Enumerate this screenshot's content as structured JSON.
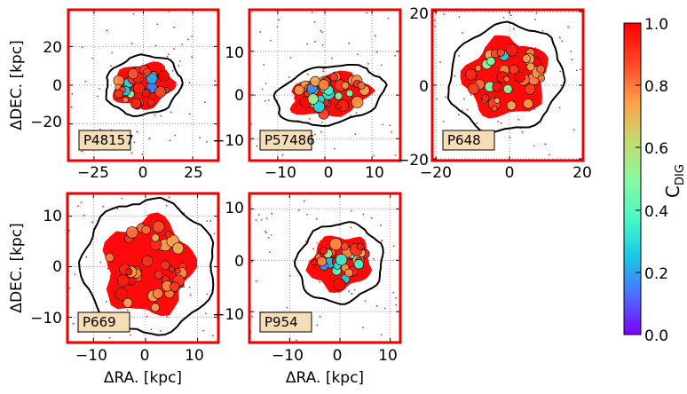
{
  "chart_data": {
    "type": "heatmap",
    "title": "",
    "description_colormap": "rainbow",
    "colorbar": {
      "label_main": "C",
      "label_sub": "DIG",
      "range": [
        0.0,
        1.0
      ],
      "ticks": [
        "0.0",
        "0.2",
        "0.4",
        "0.6",
        "0.8",
        "1.0"
      ],
      "colors": [
        "#8000ff",
        "#4c6cfa",
        "#1ac7e6",
        "#4cf9c4",
        "#8cf8a0",
        "#c6d96f",
        "#ff9d4a",
        "#ff4424",
        "#ff0000"
      ]
    },
    "xlabel": "ΔRA. [kpc]",
    "ylabel": "ΔDEC. [kpc]",
    "panels": [
      {
        "name": "P48157",
        "xlim": [
          -38,
          38
        ],
        "ylim": [
          -39,
          39
        ],
        "xticks": [
          -25,
          0,
          25
        ],
        "xtick_labels": [
          "−25",
          "0",
          "25"
        ],
        "yticks": [
          -20,
          0,
          20
        ],
        "ytick_labels": [
          "−20",
          "0",
          "20"
        ],
        "galaxy": {
          "cx": 0,
          "cy": 0,
          "rx": 16,
          "ry": 12,
          "contour_rx": 19,
          "contour_ry": 15,
          "angle": -12,
          "blue_frac": 0.55
        }
      },
      {
        "name": "P57486",
        "xlim": [
          -16,
          16
        ],
        "ylim": [
          -15,
          19.5
        ],
        "xticks": [
          -10,
          0,
          10
        ],
        "xtick_labels": [
          "−10",
          "0",
          "10"
        ],
        "yticks": [
          -10,
          0,
          10
        ],
        "ytick_labels": [
          "−10",
          "0",
          "10"
        ],
        "galaxy": {
          "cx": 1,
          "cy": 0,
          "rx": 9,
          "ry": 5,
          "contour_rx": 11.5,
          "contour_ry": 6.5,
          "angle": -10,
          "blue_frac": 0.6
        }
      },
      {
        "name": "P648",
        "xlim": [
          -21,
          20
        ],
        "ylim": [
          -20.5,
          20.5
        ],
        "xticks": [
          -20,
          0,
          20
        ],
        "xtick_labels": [
          "−20",
          "0",
          "20"
        ],
        "yticks": [
          -20,
          0,
          20
        ],
        "ytick_labels": [
          "−20",
          "0",
          "20"
        ],
        "galaxy": {
          "cx": -1,
          "cy": 2,
          "rx": 12,
          "ry": 11,
          "contour_rx": 15.5,
          "contour_ry": 14,
          "angle": -25,
          "blue_frac": 0.45
        }
      },
      {
        "name": "P669",
        "xlim": [
          -15,
          14
        ],
        "ylim": [
          -15,
          14.5
        ],
        "xticks": [
          -10,
          0,
          10
        ],
        "xtick_labels": [
          "−10",
          "0",
          "10"
        ],
        "yticks": [
          -10,
          0,
          10
        ],
        "ytick_labels": [
          "−10",
          "0",
          "10"
        ],
        "galaxy": {
          "cx": 0.5,
          "cy": 0,
          "rx": 9,
          "ry": 10,
          "contour_rx": 12.5,
          "contour_ry": 13,
          "angle": 10,
          "blue_frac": 0.1
        }
      },
      {
        "name": "P954",
        "xlim": [
          -18,
          12
        ],
        "ylim": [
          -16,
          13
        ],
        "xticks": [
          -10,
          0,
          10
        ],
        "xtick_labels": [
          "−10",
          "0",
          "10"
        ],
        "yticks": [
          -10,
          0,
          10
        ],
        "ytick_labels": [
          "−10",
          "0",
          "10"
        ],
        "galaxy": {
          "cx": 0,
          "cy": -0.5,
          "rx": 6.5,
          "ry": 5.5,
          "contour_rx": 8.5,
          "contour_ry": 7.5,
          "angle": -20,
          "blue_frac": 0.4
        }
      }
    ],
    "colors": {
      "frame": "#ee0000",
      "grid": "#808080",
      "label_box_fill": "#f5deb3",
      "contour": "#000000"
    }
  }
}
